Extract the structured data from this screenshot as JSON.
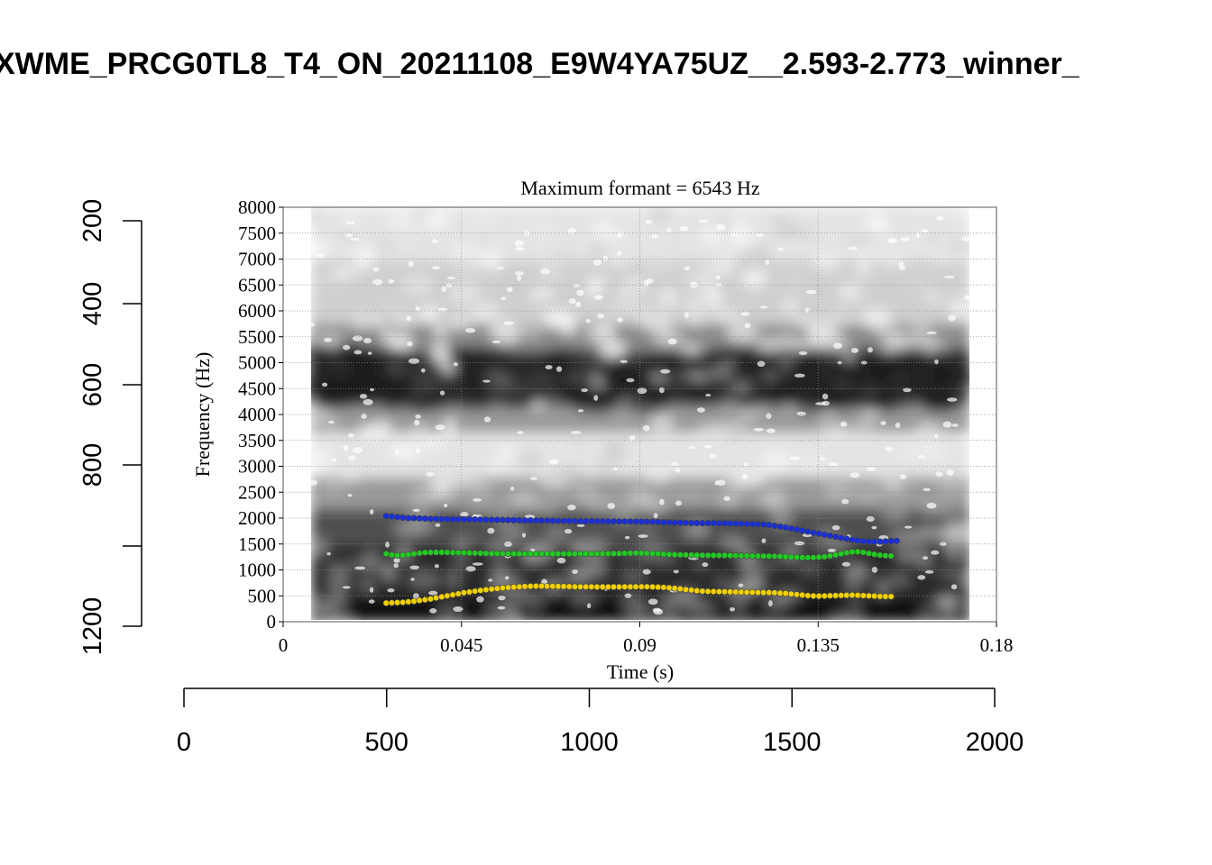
{
  "page": {
    "title": "XWME_PRCG0TL8_T4_ON_20211108_E9W4YA75UZ__2.593-2.773_winner_"
  },
  "chart_data": {
    "type": "scatter",
    "subtitle": "Maximum formant  =  6543 Hz",
    "xlabel": "Time (s)",
    "ylabel": "Frequency (Hz)",
    "xlim": [
      0,
      0.18
    ],
    "ylim": [
      0,
      8000
    ],
    "x_ticks": [
      "0",
      "0.045",
      "0.09",
      "0.135",
      "0.18"
    ],
    "y_ticks": [
      "0",
      "500",
      "1000",
      "1500",
      "2000",
      "2500",
      "3000",
      "3500",
      "4000",
      "4500",
      "5000",
      "5500",
      "6000",
      "6500",
      "7000",
      "7500",
      "8000"
    ],
    "grid": true,
    "background": "grayscale spectrogram",
    "series": [
      {
        "color": "#1a2fd6",
        "points": [
          [
            0.026,
            2040
          ],
          [
            0.0274,
            2030
          ],
          [
            0.0288,
            2020
          ],
          [
            0.0302,
            2010
          ],
          [
            0.0316,
            2000
          ],
          [
            0.033,
            2000
          ],
          [
            0.0344,
            1995
          ],
          [
            0.0358,
            1990
          ],
          [
            0.0372,
            1985
          ],
          [
            0.0386,
            1985
          ],
          [
            0.04,
            1980
          ],
          [
            0.0414,
            1980
          ],
          [
            0.0428,
            1978
          ],
          [
            0.0442,
            1975
          ],
          [
            0.0456,
            1975
          ],
          [
            0.047,
            1973
          ],
          [
            0.0484,
            1972
          ],
          [
            0.0498,
            1970
          ],
          [
            0.0512,
            1968
          ],
          [
            0.0526,
            1965
          ],
          [
            0.054,
            1965
          ],
          [
            0.0554,
            1963
          ],
          [
            0.0568,
            1962
          ],
          [
            0.0582,
            1960
          ],
          [
            0.0596,
            1958
          ],
          [
            0.061,
            1955
          ],
          [
            0.0624,
            1955
          ],
          [
            0.0638,
            1953
          ],
          [
            0.0652,
            1952
          ],
          [
            0.0666,
            1950
          ],
          [
            0.068,
            1950
          ],
          [
            0.0694,
            1948
          ],
          [
            0.0708,
            1945
          ],
          [
            0.0722,
            1945
          ],
          [
            0.0736,
            1943
          ],
          [
            0.075,
            1942
          ],
          [
            0.0764,
            1940
          ],
          [
            0.0778,
            1940
          ],
          [
            0.0792,
            1938
          ],
          [
            0.0806,
            1937
          ],
          [
            0.082,
            1936
          ],
          [
            0.0834,
            1935
          ],
          [
            0.0848,
            1935
          ],
          [
            0.0862,
            1934
          ],
          [
            0.0876,
            1933
          ],
          [
            0.089,
            1932
          ],
          [
            0.0904,
            1931
          ],
          [
            0.0918,
            1930
          ],
          [
            0.0932,
            1928
          ],
          [
            0.0946,
            1925
          ],
          [
            0.096,
            1920
          ],
          [
            0.0974,
            1915
          ],
          [
            0.0988,
            1912
          ],
          [
            0.1002,
            1910
          ],
          [
            0.1016,
            1908
          ],
          [
            0.103,
            1906
          ],
          [
            0.1044,
            1905
          ],
          [
            0.1058,
            1904
          ],
          [
            0.1072,
            1903
          ],
          [
            0.1086,
            1902
          ],
          [
            0.11,
            1900
          ],
          [
            0.1114,
            1900
          ],
          [
            0.1128,
            1898
          ],
          [
            0.1142,
            1895
          ],
          [
            0.1156,
            1892
          ],
          [
            0.117,
            1890
          ],
          [
            0.1184,
            1885
          ],
          [
            0.1198,
            1880
          ],
          [
            0.1212,
            1875
          ],
          [
            0.1226,
            1865
          ],
          [
            0.124,
            1850
          ],
          [
            0.1254,
            1835
          ],
          [
            0.1268,
            1818
          ],
          [
            0.1282,
            1800
          ],
          [
            0.1296,
            1780
          ],
          [
            0.131,
            1760
          ],
          [
            0.1324,
            1740
          ],
          [
            0.1338,
            1720
          ],
          [
            0.1352,
            1700
          ],
          [
            0.1366,
            1680
          ],
          [
            0.138,
            1660
          ],
          [
            0.1394,
            1640
          ],
          [
            0.1408,
            1620
          ],
          [
            0.1422,
            1600
          ],
          [
            0.1436,
            1580
          ],
          [
            0.145,
            1565
          ],
          [
            0.1464,
            1555
          ],
          [
            0.1478,
            1548
          ],
          [
            0.1492,
            1545
          ],
          [
            0.1506,
            1545
          ],
          [
            0.152,
            1550
          ],
          [
            0.1534,
            1555
          ],
          [
            0.1548,
            1560
          ]
        ]
      },
      {
        "color": "#22c922",
        "points": [
          [
            0.026,
            1310
          ],
          [
            0.0274,
            1290
          ],
          [
            0.0288,
            1280
          ],
          [
            0.0302,
            1285
          ],
          [
            0.0316,
            1295
          ],
          [
            0.033,
            1310
          ],
          [
            0.0344,
            1325
          ],
          [
            0.0358,
            1335
          ],
          [
            0.0372,
            1338
          ],
          [
            0.0386,
            1340
          ],
          [
            0.04,
            1340
          ],
          [
            0.0414,
            1338
          ],
          [
            0.0428,
            1335
          ],
          [
            0.0442,
            1333
          ],
          [
            0.0456,
            1330
          ],
          [
            0.047,
            1328
          ],
          [
            0.0484,
            1325
          ],
          [
            0.0498,
            1322
          ],
          [
            0.0512,
            1320
          ],
          [
            0.0526,
            1318
          ],
          [
            0.054,
            1315
          ],
          [
            0.0554,
            1313
          ],
          [
            0.0568,
            1312
          ],
          [
            0.0582,
            1310
          ],
          [
            0.0596,
            1310
          ],
          [
            0.061,
            1310
          ],
          [
            0.0624,
            1310
          ],
          [
            0.0638,
            1310
          ],
          [
            0.0652,
            1310
          ],
          [
            0.0666,
            1310
          ],
          [
            0.068,
            1310
          ],
          [
            0.0694,
            1310
          ],
          [
            0.0708,
            1310
          ],
          [
            0.0722,
            1310
          ],
          [
            0.0736,
            1310
          ],
          [
            0.075,
            1310
          ],
          [
            0.0764,
            1310
          ],
          [
            0.0778,
            1310
          ],
          [
            0.0792,
            1310
          ],
          [
            0.0806,
            1312
          ],
          [
            0.082,
            1314
          ],
          [
            0.0834,
            1316
          ],
          [
            0.0848,
            1318
          ],
          [
            0.0862,
            1320
          ],
          [
            0.0876,
            1322
          ],
          [
            0.089,
            1325
          ],
          [
            0.0904,
            1323
          ],
          [
            0.0918,
            1320
          ],
          [
            0.0932,
            1315
          ],
          [
            0.0946,
            1310
          ],
          [
            0.096,
            1305
          ],
          [
            0.0974,
            1300
          ],
          [
            0.0988,
            1295
          ],
          [
            0.1002,
            1292
          ],
          [
            0.1016,
            1290
          ],
          [
            0.103,
            1288
          ],
          [
            0.1044,
            1285
          ],
          [
            0.1058,
            1282
          ],
          [
            0.1072,
            1280
          ],
          [
            0.1086,
            1280
          ],
          [
            0.11,
            1280
          ],
          [
            0.1114,
            1280
          ],
          [
            0.1128,
            1278
          ],
          [
            0.1142,
            1276
          ],
          [
            0.1156,
            1275
          ],
          [
            0.117,
            1272
          ],
          [
            0.1184,
            1270
          ],
          [
            0.1198,
            1268
          ],
          [
            0.1212,
            1266
          ],
          [
            0.1226,
            1265
          ],
          [
            0.124,
            1262
          ],
          [
            0.1254,
            1260
          ],
          [
            0.1268,
            1255
          ],
          [
            0.1282,
            1250
          ],
          [
            0.1296,
            1245
          ],
          [
            0.131,
            1240
          ],
          [
            0.1324,
            1238
          ],
          [
            0.1338,
            1240
          ],
          [
            0.1352,
            1245
          ],
          [
            0.1366,
            1255
          ],
          [
            0.138,
            1270
          ],
          [
            0.1394,
            1290
          ],
          [
            0.1408,
            1310
          ],
          [
            0.1422,
            1330
          ],
          [
            0.1436,
            1345
          ],
          [
            0.145,
            1350
          ],
          [
            0.1464,
            1340
          ],
          [
            0.1478,
            1320
          ],
          [
            0.1492,
            1300
          ],
          [
            0.1506,
            1285
          ],
          [
            0.152,
            1275
          ],
          [
            0.1534,
            1270
          ]
        ]
      },
      {
        "color": "#f0d000",
        "points": [
          [
            0.026,
            360
          ],
          [
            0.0274,
            365
          ],
          [
            0.0288,
            370
          ],
          [
            0.0302,
            375
          ],
          [
            0.0316,
            385
          ],
          [
            0.033,
            395
          ],
          [
            0.0344,
            410
          ],
          [
            0.0358,
            425
          ],
          [
            0.0372,
            440
          ],
          [
            0.0386,
            460
          ],
          [
            0.04,
            480
          ],
          [
            0.0414,
            500
          ],
          [
            0.0428,
            520
          ],
          [
            0.0442,
            540
          ],
          [
            0.0456,
            560
          ],
          [
            0.047,
            575
          ],
          [
            0.0484,
            590
          ],
          [
            0.0498,
            605
          ],
          [
            0.0512,
            618
          ],
          [
            0.0526,
            630
          ],
          [
            0.054,
            642
          ],
          [
            0.0554,
            652
          ],
          [
            0.0568,
            660
          ],
          [
            0.0582,
            668
          ],
          [
            0.0596,
            674
          ],
          [
            0.061,
            680
          ],
          [
            0.0624,
            684
          ],
          [
            0.0638,
            686
          ],
          [
            0.0652,
            686
          ],
          [
            0.0666,
            685
          ],
          [
            0.068,
            684
          ],
          [
            0.0694,
            682
          ],
          [
            0.0708,
            680
          ],
          [
            0.0722,
            678
          ],
          [
            0.0736,
            676
          ],
          [
            0.075,
            675
          ],
          [
            0.0764,
            674
          ],
          [
            0.0778,
            673
          ],
          [
            0.0792,
            672
          ],
          [
            0.0806,
            672
          ],
          [
            0.082,
            672
          ],
          [
            0.0834,
            672
          ],
          [
            0.0848,
            672
          ],
          [
            0.0862,
            673
          ],
          [
            0.0876,
            674
          ],
          [
            0.089,
            675
          ],
          [
            0.0904,
            675
          ],
          [
            0.0918,
            675
          ],
          [
            0.0932,
            672
          ],
          [
            0.0946,
            668
          ],
          [
            0.096,
            662
          ],
          [
            0.0974,
            655
          ],
          [
            0.0988,
            645
          ],
          [
            0.1002,
            635
          ],
          [
            0.1016,
            622
          ],
          [
            0.103,
            610
          ],
          [
            0.1044,
            598
          ],
          [
            0.1058,
            590
          ],
          [
            0.1072,
            585
          ],
          [
            0.1086,
            582
          ],
          [
            0.11,
            580
          ],
          [
            0.1114,
            578
          ],
          [
            0.1128,
            576
          ],
          [
            0.1142,
            574
          ],
          [
            0.1156,
            572
          ],
          [
            0.117,
            570
          ],
          [
            0.1184,
            568
          ],
          [
            0.1198,
            566
          ],
          [
            0.1212,
            564
          ],
          [
            0.1226,
            562
          ],
          [
            0.124,
            558
          ],
          [
            0.1254,
            552
          ],
          [
            0.1268,
            545
          ],
          [
            0.1282,
            535
          ],
          [
            0.1296,
            525
          ],
          [
            0.131,
            515
          ],
          [
            0.1324,
            505
          ],
          [
            0.1338,
            498
          ],
          [
            0.1352,
            495
          ],
          [
            0.1366,
            498
          ],
          [
            0.138,
            502
          ],
          [
            0.1394,
            505
          ],
          [
            0.1408,
            508
          ],
          [
            0.1422,
            510
          ],
          [
            0.1436,
            512
          ],
          [
            0.145,
            510
          ],
          [
            0.1464,
            505
          ],
          [
            0.1478,
            500
          ],
          [
            0.1492,
            495
          ],
          [
            0.1506,
            490
          ],
          [
            0.152,
            488
          ],
          [
            0.1534,
            486
          ]
        ]
      }
    ],
    "outer_left_axis": {
      "ticks": [
        "200",
        "400",
        "600",
        "800",
        "1200"
      ]
    },
    "outer_bottom_axis": {
      "ticks": [
        "0",
        "500",
        "1000",
        "1500",
        "2000"
      ]
    }
  }
}
